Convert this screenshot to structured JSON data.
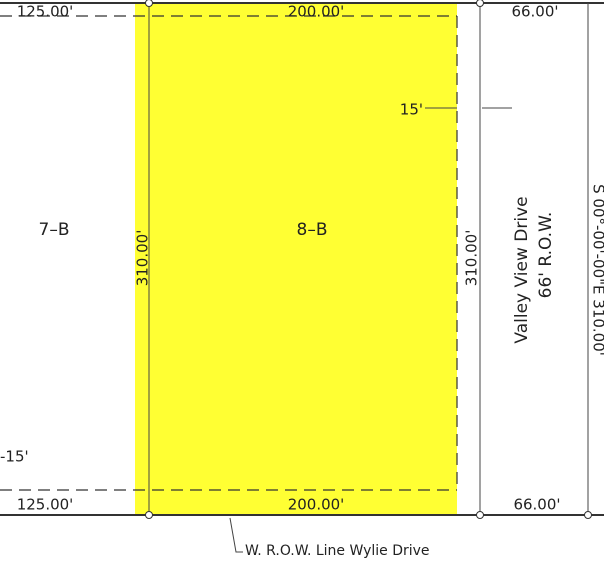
{
  "labels": {
    "top_left_width": "125.00'",
    "top_mid_width": "200.00'",
    "top_right_width": "66.00'",
    "setback_right": "15'",
    "lot_left": "7–B",
    "lot_main": "8–B",
    "depth_left": "310.00'",
    "depth_right": "310.00'",
    "road_name": "Valley View Drive",
    "road_row": "66' R.O.W.",
    "east_bearing": "S 00°-00'-00\"E 310.00'",
    "setback_left": "-15'",
    "bottom_left_width": "125.00'",
    "bottom_mid_width": "200.00'",
    "bottom_right_width": "66.00'",
    "leader_note": "W. R.O.W. Line Wylie Drive"
  }
}
